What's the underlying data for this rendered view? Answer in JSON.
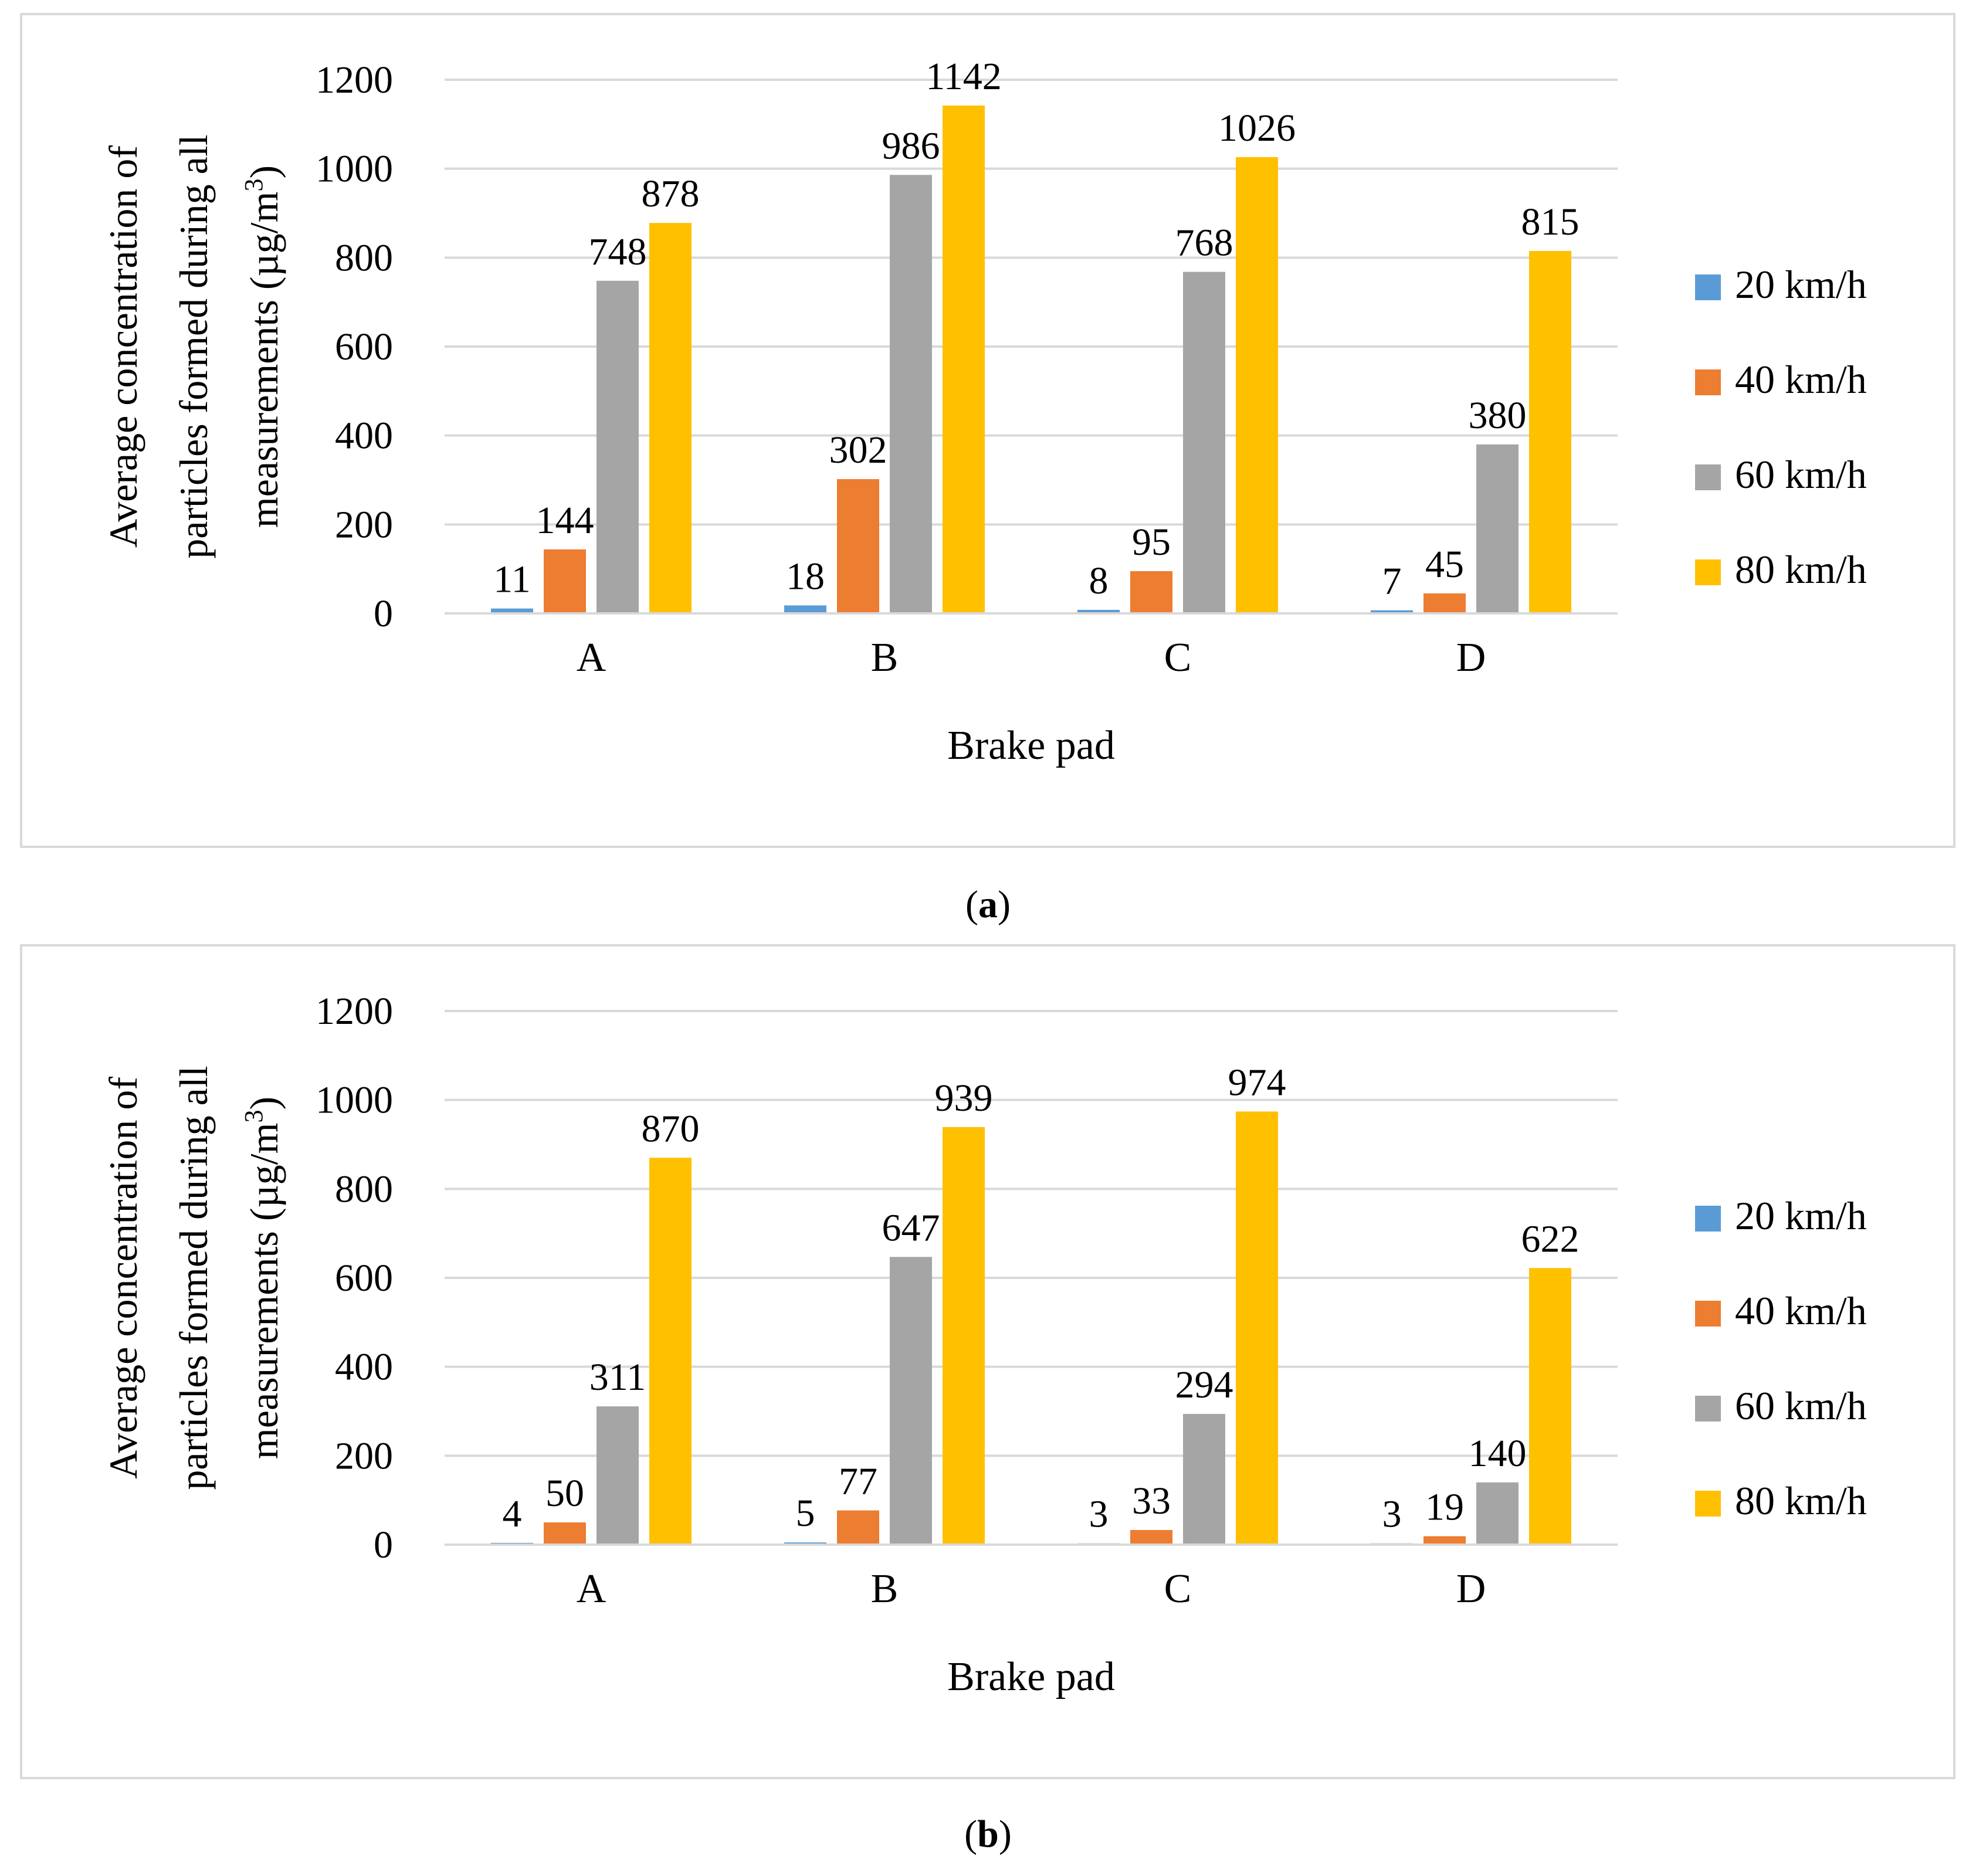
{
  "legend": {
    "series": [
      {
        "name": "20 km/h",
        "color": "#5b9bd5"
      },
      {
        "name": "40 km/h",
        "color": "#ed7d31"
      },
      {
        "name": "60 km/h",
        "color": "#a5a5a5"
      },
      {
        "name": "80 km/h",
        "color": "#ffc000"
      }
    ]
  },
  "chart_data": [
    {
      "type": "bar",
      "caption_paren_open": "(",
      "caption_label": "a",
      "caption_paren_close": ")",
      "title": "",
      "xlabel": "Brake pad",
      "ylabel_line1": "Average concentration of",
      "ylabel_line2": "particles formed during all",
      "ylabel_line3_main": "measurements (µg/m",
      "ylabel_line3_sup": "3",
      "ylabel_line3_end": ")",
      "ylim": [
        0,
        1200
      ],
      "yticks": [
        0,
        200,
        400,
        600,
        800,
        1000,
        1200
      ],
      "grid": true,
      "legend_position": "right",
      "categories": [
        "A",
        "B",
        "C",
        "D"
      ],
      "series": [
        {
          "name": "20 km/h",
          "color": "#5b9bd5",
          "values": [
            11,
            18,
            8,
            7
          ]
        },
        {
          "name": "40 km/h",
          "color": "#ed7d31",
          "values": [
            144,
            302,
            95,
            45
          ]
        },
        {
          "name": "60 km/h",
          "color": "#a5a5a5",
          "values": [
            748,
            986,
            768,
            380
          ]
        },
        {
          "name": "80 km/h",
          "color": "#ffc000",
          "values": [
            878,
            1142,
            1026,
            815
          ]
        }
      ]
    },
    {
      "type": "bar",
      "caption_paren_open": "(",
      "caption_label": "b",
      "caption_paren_close": ")",
      "title": "",
      "xlabel": "Brake pad",
      "ylabel_line1": "Average concentration of",
      "ylabel_line2": "particles formed during all",
      "ylabel_line3_main": "measurements (µg/m",
      "ylabel_line3_sup": "3",
      "ylabel_line3_end": ")",
      "ylim": [
        0,
        1200
      ],
      "yticks": [
        0,
        200,
        400,
        600,
        800,
        1000,
        1200
      ],
      "grid": true,
      "legend_position": "right",
      "categories": [
        "A",
        "B",
        "C",
        "D"
      ],
      "series": [
        {
          "name": "20 km/h",
          "color": "#5b9bd5",
          "values": [
            4,
            5,
            3,
            3
          ]
        },
        {
          "name": "40 km/h",
          "color": "#ed7d31",
          "values": [
            50,
            77,
            33,
            19
          ]
        },
        {
          "name": "60 km/h",
          "color": "#a5a5a5",
          "values": [
            311,
            647,
            294,
            140
          ]
        },
        {
          "name": "80 km/h",
          "color": "#ffc000",
          "values": [
            870,
            939,
            974,
            622
          ]
        }
      ]
    }
  ]
}
